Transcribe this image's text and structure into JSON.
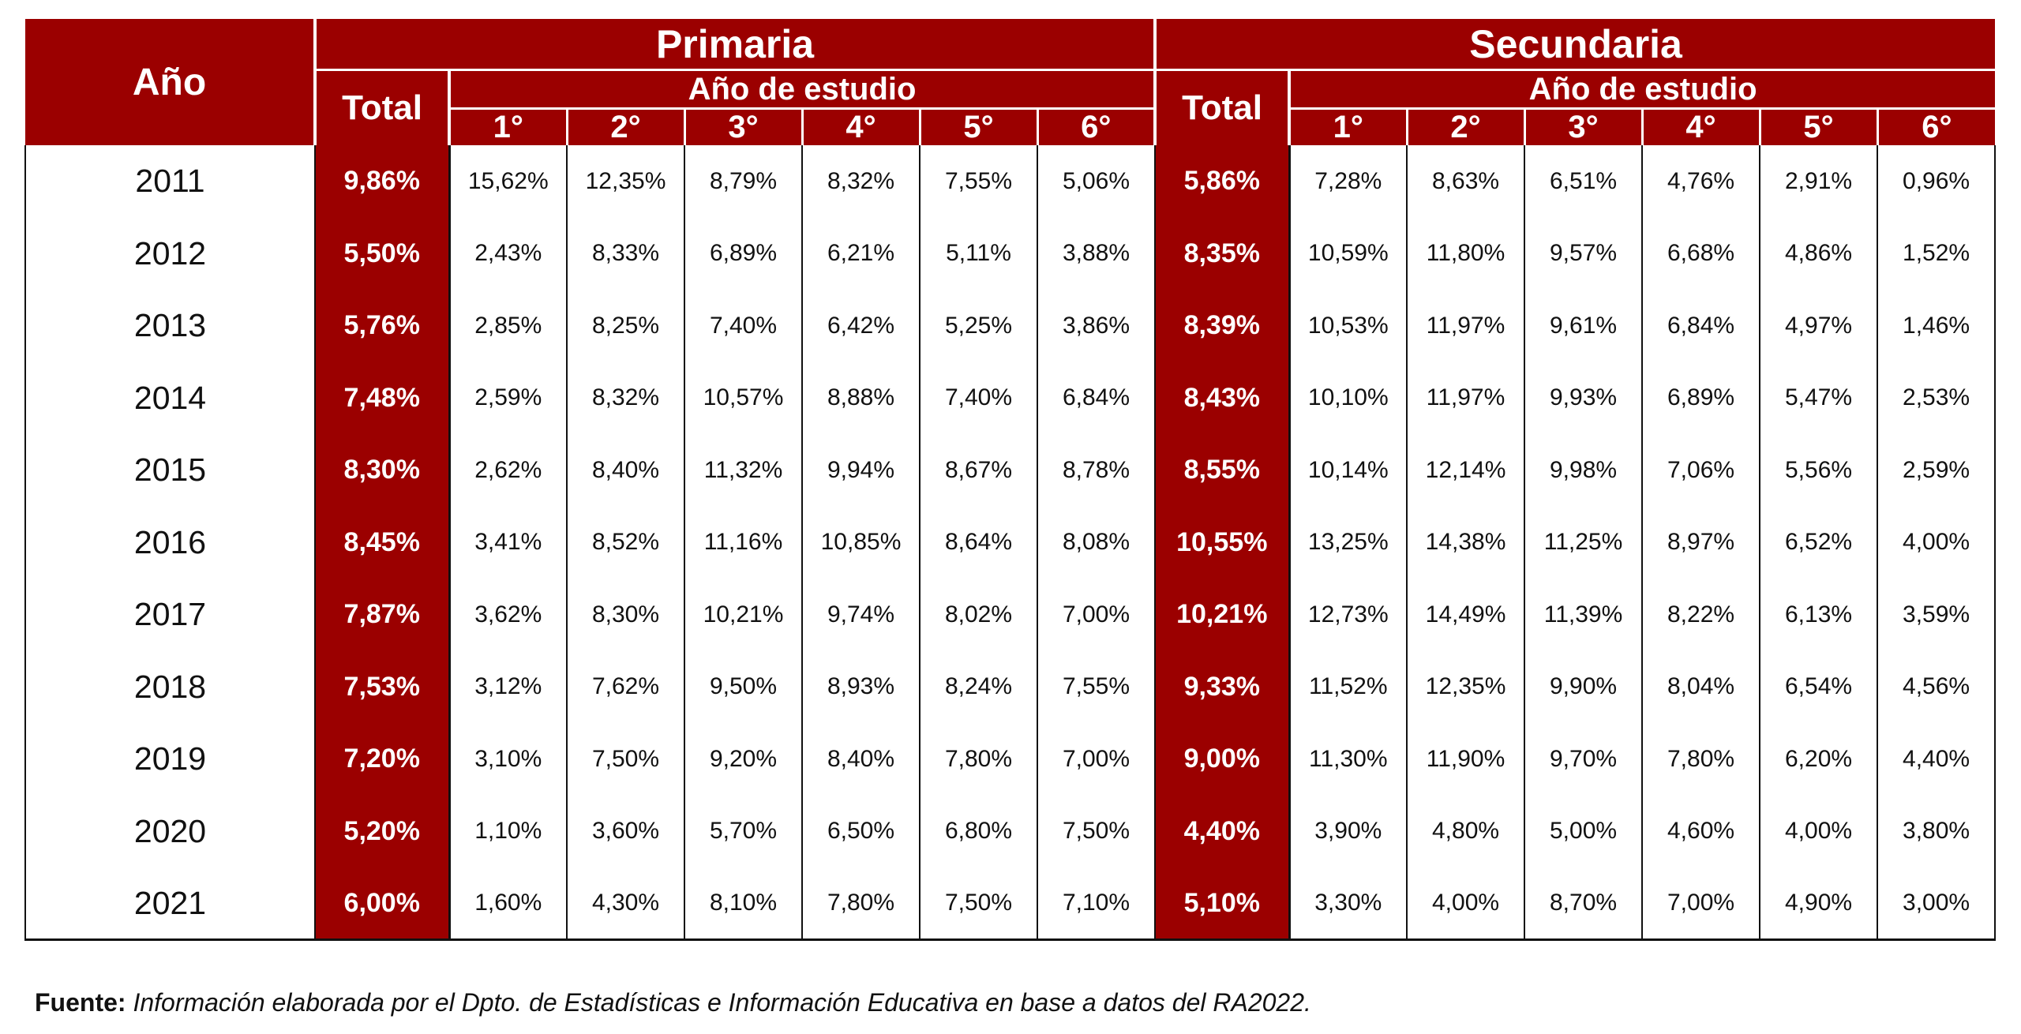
{
  "header": {
    "anio": "Año",
    "primaria": "Primaria",
    "secundaria": "Secundaria",
    "total": "Total",
    "anio_estudio": "Año de estudio",
    "grades": [
      "1°",
      "2°",
      "3°",
      "4°",
      "5°",
      "6°"
    ]
  },
  "colors": {
    "header_bg": "#9b0000",
    "header_text": "#ffffff"
  },
  "rows": [
    {
      "year": "2011",
      "prim_total": "9,86%",
      "prim": [
        "15,62%",
        "12,35%",
        "8,79%",
        "8,32%",
        "7,55%",
        "5,06%"
      ],
      "sec_total": "5,86%",
      "sec": [
        "7,28%",
        "8,63%",
        "6,51%",
        "4,76%",
        "2,91%",
        "0,96%"
      ]
    },
    {
      "year": "2012",
      "prim_total": "5,50%",
      "prim": [
        "2,43%",
        "8,33%",
        "6,89%",
        "6,21%",
        "5,11%",
        "3,88%"
      ],
      "sec_total": "8,35%",
      "sec": [
        "10,59%",
        "11,80%",
        "9,57%",
        "6,68%",
        "4,86%",
        "1,52%"
      ]
    },
    {
      "year": "2013",
      "prim_total": "5,76%",
      "prim": [
        "2,85%",
        "8,25%",
        "7,40%",
        "6,42%",
        "5,25%",
        "3,86%"
      ],
      "sec_total": "8,39%",
      "sec": [
        "10,53%",
        "11,97%",
        "9,61%",
        "6,84%",
        "4,97%",
        "1,46%"
      ]
    },
    {
      "year": "2014",
      "prim_total": "7,48%",
      "prim": [
        "2,59%",
        "8,32%",
        "10,57%",
        "8,88%",
        "7,40%",
        "6,84%"
      ],
      "sec_total": "8,43%",
      "sec": [
        "10,10%",
        "11,97%",
        "9,93%",
        "6,89%",
        "5,47%",
        "2,53%"
      ]
    },
    {
      "year": "2015",
      "prim_total": "8,30%",
      "prim": [
        "2,62%",
        "8,40%",
        "11,32%",
        "9,94%",
        "8,67%",
        "8,78%"
      ],
      "sec_total": "8,55%",
      "sec": [
        "10,14%",
        "12,14%",
        "9,98%",
        "7,06%",
        "5,56%",
        "2,59%"
      ]
    },
    {
      "year": "2016",
      "prim_total": "8,45%",
      "prim": [
        "3,41%",
        "8,52%",
        "11,16%",
        "10,85%",
        "8,64%",
        "8,08%"
      ],
      "sec_total": "10,55%",
      "sec": [
        "13,25%",
        "14,38%",
        "11,25%",
        "8,97%",
        "6,52%",
        "4,00%"
      ]
    },
    {
      "year": "2017",
      "prim_total": "7,87%",
      "prim": [
        "3,62%",
        "8,30%",
        "10,21%",
        "9,74%",
        "8,02%",
        "7,00%"
      ],
      "sec_total": "10,21%",
      "sec": [
        "12,73%",
        "14,49%",
        "11,39%",
        "8,22%",
        "6,13%",
        "3,59%"
      ]
    },
    {
      "year": "2018",
      "prim_total": "7,53%",
      "prim": [
        "3,12%",
        "7,62%",
        "9,50%",
        "8,93%",
        "8,24%",
        "7,55%"
      ],
      "sec_total": "9,33%",
      "sec": [
        "11,52%",
        "12,35%",
        "9,90%",
        "8,04%",
        "6,54%",
        "4,56%"
      ]
    },
    {
      "year": "2019",
      "prim_total": "7,20%",
      "prim": [
        "3,10%",
        "7,50%",
        "9,20%",
        "8,40%",
        "7,80%",
        "7,00%"
      ],
      "sec_total": "9,00%",
      "sec": [
        "11,30%",
        "11,90%",
        "9,70%",
        "7,80%",
        "6,20%",
        "4,40%"
      ]
    },
    {
      "year": "2020",
      "prim_total": "5,20%",
      "prim": [
        "1,10%",
        "3,60%",
        "5,70%",
        "6,50%",
        "6,80%",
        "7,50%"
      ],
      "sec_total": "4,40%",
      "sec": [
        "3,90%",
        "4,80%",
        "5,00%",
        "4,60%",
        "4,00%",
        "3,80%"
      ]
    },
    {
      "year": "2021",
      "prim_total": "6,00%",
      "prim": [
        "1,60%",
        "4,30%",
        "8,10%",
        "7,80%",
        "7,50%",
        "7,10%"
      ],
      "sec_total": "5,10%",
      "sec": [
        "3,30%",
        "4,00%",
        "8,70%",
        "7,00%",
        "4,90%",
        "3,00%"
      ]
    }
  ],
  "footer": {
    "label": "Fuente:",
    "text": "Información elaborada por el Dpto. de Estadísticas e Información Educativa en base a datos del RA2022."
  }
}
